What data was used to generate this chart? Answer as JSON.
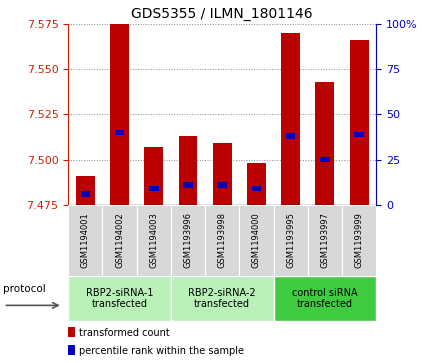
{
  "title": "GDS5355 / ILMN_1801146",
  "samples": [
    "GSM1194001",
    "GSM1194002",
    "GSM1194003",
    "GSM1193996",
    "GSM1193998",
    "GSM1194000",
    "GSM1193995",
    "GSM1193997",
    "GSM1193999"
  ],
  "red_values": [
    7.491,
    7.575,
    7.507,
    7.513,
    7.509,
    7.498,
    7.57,
    7.543,
    7.566
  ],
  "blue_values": [
    7.481,
    7.515,
    7.484,
    7.486,
    7.486,
    7.484,
    7.513,
    7.5,
    7.514
  ],
  "ylim_left": [
    7.475,
    7.575
  ],
  "ylim_right": [
    0,
    100
  ],
  "yticks_left": [
    7.475,
    7.5,
    7.525,
    7.55,
    7.575
  ],
  "yticks_right": [
    0,
    25,
    50,
    75,
    100
  ],
  "groups": [
    {
      "label": "RBP2-siRNA-1\ntransfected",
      "start": 0,
      "end": 3,
      "color": "#b8f0b8"
    },
    {
      "label": "RBP2-siRNA-2\ntransfected",
      "start": 3,
      "end": 6,
      "color": "#b8f0b8"
    },
    {
      "label": "control siRNA\ntransfected",
      "start": 6,
      "end": 9,
      "color": "#40cc40"
    }
  ],
  "bar_bottom": 7.475,
  "bar_width": 0.55,
  "blue_bar_width": 0.28,
  "blue_bar_height": 0.003,
  "red_color": "#bb0000",
  "blue_color": "#0000bb",
  "left_tick_color": "#cc2200",
  "right_tick_color": "#0000cc",
  "grid_color": "#888888",
  "bg_color": "#ffffff",
  "sample_box_color": "#d8d8d8",
  "legend_items": [
    {
      "label": "transformed count",
      "color": "#bb0000"
    },
    {
      "label": "percentile rank within the sample",
      "color": "#0000bb"
    }
  ]
}
